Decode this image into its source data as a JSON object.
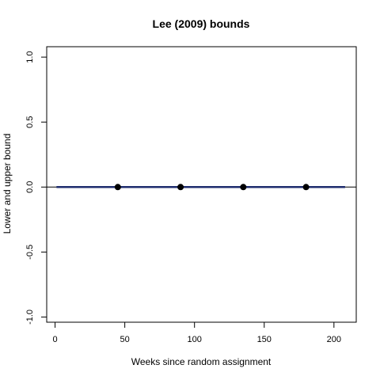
{
  "chart_data": {
    "type": "line",
    "title": "Lee (2009) bounds",
    "xlabel": "Weeks since random assignment",
    "ylabel": "Lower and upper bound",
    "xlim": [
      -6,
      216
    ],
    "ylim": [
      -1.04,
      1.08
    ],
    "x_ticks": [
      0,
      50,
      100,
      150,
      200
    ],
    "x_tick_labels": [
      "0",
      "50",
      "100",
      "150",
      "200"
    ],
    "y_ticks": [
      -1.0,
      -0.5,
      0.0,
      0.5,
      1.0
    ],
    "y_tick_labels": [
      "-1.0",
      "-0.5",
      "0.0",
      "0.5",
      "1.0"
    ],
    "grid": false,
    "reference_line": {
      "y": 0,
      "color": "#000000"
    },
    "series": [
      {
        "type": "line",
        "color": "#1f2d6e",
        "x": [
          1,
          208
        ],
        "y": [
          0,
          0
        ]
      },
      {
        "type": "scatter",
        "color": "#000000",
        "x": [
          45,
          90,
          135,
          180
        ],
        "y": [
          0,
          0,
          0,
          0
        ]
      }
    ]
  }
}
